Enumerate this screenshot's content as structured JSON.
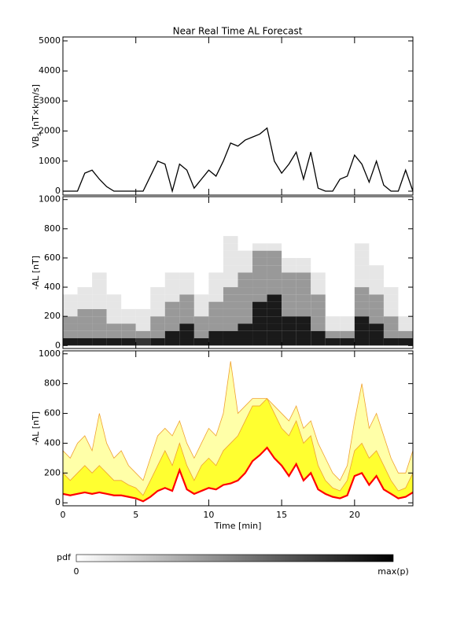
{
  "chart_data": [
    {
      "type": "line",
      "title": "Near Real Time AL Forecast",
      "ylabel": "VB",
      "ylabel_sub": "s",
      "ylabel_rest": " [nT×km/s]",
      "x": [
        0,
        0.5,
        1,
        1.5,
        2,
        2.5,
        3,
        3.5,
        4,
        4.5,
        5,
        5.5,
        6,
        6.5,
        7,
        7.5,
        8,
        8.5,
        9,
        9.5,
        10,
        10.5,
        11,
        11.5,
        12,
        12.5,
        13,
        13.5,
        14,
        14.5,
        15,
        15.5,
        16,
        16.5,
        17,
        17.5,
        18,
        18.5,
        19,
        19.5,
        20,
        20.5,
        21,
        21.5,
        22,
        22.5,
        23,
        23.5,
        24
      ],
      "series": [
        {
          "color": "#000000",
          "values": [
            0,
            0,
            0,
            600,
            700,
            400,
            150,
            0,
            0,
            0,
            0,
            0,
            500,
            1000,
            900,
            0,
            900,
            700,
            100,
            400,
            700,
            500,
            1000,
            1600,
            1500,
            1700,
            1800,
            1900,
            2100,
            1000,
            600,
            900,
            1300,
            400,
            1300,
            100,
            0,
            0,
            400,
            500,
            1200,
            900,
            300,
            1000,
            200,
            0,
            0,
            700,
            0
          ]
        }
      ],
      "xlim": [
        0,
        24
      ],
      "xticks": [
        0,
        5,
        10,
        15,
        20
      ],
      "ylim": [
        -130,
        5130
      ],
      "yticks": [
        0,
        1000,
        2000,
        3000,
        4000,
        5000
      ]
    },
    {
      "type": "heatmap",
      "ylabel": "-AL [nT]",
      "x_bins": [
        0,
        1,
        2,
        3,
        4,
        5,
        6,
        7,
        8,
        9,
        10,
        11,
        12,
        13,
        14,
        15,
        16,
        17,
        18,
        19,
        20,
        21,
        22,
        23,
        24
      ],
      "y_bins": [
        0,
        50,
        100,
        150,
        200,
        250,
        300,
        350,
        400,
        450,
        500,
        550,
        600,
        650,
        700,
        750
      ],
      "z": [
        [
          0.9,
          0.4,
          0.4,
          0.4,
          0.1,
          0.1,
          0.1,
          0,
          0,
          0,
          0,
          0,
          0,
          0,
          0
        ],
        [
          0.9,
          0.4,
          0.4,
          0.4,
          0.4,
          0.1,
          0.1,
          0.1,
          0,
          0,
          0,
          0,
          0,
          0,
          0
        ],
        [
          0.9,
          0.4,
          0.4,
          0.4,
          0.4,
          0.1,
          0.1,
          0.1,
          0.1,
          0.1,
          0,
          0,
          0,
          0,
          0
        ],
        [
          0.9,
          0.4,
          0.4,
          0.1,
          0.1,
          0.1,
          0.1,
          0,
          0,
          0,
          0,
          0,
          0,
          0,
          0
        ],
        [
          0.9,
          0.4,
          0.4,
          0.1,
          0.1,
          0,
          0,
          0,
          0,
          0,
          0,
          0,
          0,
          0,
          0
        ],
        [
          0.8,
          0.4,
          0.1,
          0.1,
          0.1,
          0,
          0,
          0,
          0,
          0,
          0,
          0,
          0,
          0,
          0
        ],
        [
          0.9,
          0.4,
          0.4,
          0.4,
          0.1,
          0.1,
          0.1,
          0.1,
          0,
          0,
          0,
          0,
          0,
          0,
          0
        ],
        [
          0.9,
          0.9,
          0.4,
          0.4,
          0.4,
          0.4,
          0.1,
          0.1,
          0.1,
          0.1,
          0,
          0,
          0,
          0,
          0
        ],
        [
          0.9,
          0.9,
          0.9,
          0.4,
          0.4,
          0.4,
          0.4,
          0.1,
          0.1,
          0.1,
          0,
          0,
          0,
          0,
          0
        ],
        [
          0.9,
          0.4,
          0.4,
          0.4,
          0.1,
          0.1,
          0.1,
          0,
          0,
          0,
          0,
          0,
          0,
          0,
          0
        ],
        [
          0.9,
          0.9,
          0.4,
          0.4,
          0.4,
          0.4,
          0.1,
          0.1,
          0.1,
          0.1,
          0,
          0,
          0,
          0,
          0
        ],
        [
          0.9,
          0.9,
          0.4,
          0.4,
          0.4,
          0.4,
          0.4,
          0.4,
          0.1,
          0.1,
          0.1,
          0.1,
          0.1,
          0.1,
          0.1
        ],
        [
          0.9,
          0.9,
          0.9,
          0.4,
          0.4,
          0.4,
          0.4,
          0.4,
          0.4,
          0.4,
          0.1,
          0.1,
          0.1,
          0,
          0
        ],
        [
          0.9,
          0.9,
          0.9,
          0.9,
          0.9,
          0.9,
          0.4,
          0.4,
          0.4,
          0.4,
          0.4,
          0.4,
          0.4,
          0.1,
          0
        ],
        [
          0.9,
          0.9,
          0.9,
          0.9,
          0.9,
          0.9,
          0.9,
          0.4,
          0.4,
          0.4,
          0.4,
          0.4,
          0.4,
          0.1,
          0
        ],
        [
          0.9,
          0.9,
          0.9,
          0.9,
          0.4,
          0.4,
          0.4,
          0.4,
          0.4,
          0.4,
          0.1,
          0.1,
          0,
          0,
          0
        ],
        [
          0.9,
          0.9,
          0.9,
          0.9,
          0.4,
          0.4,
          0.4,
          0.4,
          0.4,
          0.4,
          0.1,
          0.1,
          0,
          0,
          0
        ],
        [
          0.9,
          0.9,
          0.4,
          0.4,
          0.4,
          0.4,
          0.4,
          0.1,
          0.1,
          0.1,
          0,
          0,
          0,
          0,
          0
        ],
        [
          0.9,
          0.4,
          0.1,
          0.1,
          0,
          0,
          0,
          0,
          0,
          0,
          0,
          0,
          0,
          0,
          0
        ],
        [
          0.9,
          0.4,
          0.1,
          0.1,
          0,
          0,
          0,
          0,
          0,
          0,
          0,
          0,
          0,
          0,
          0
        ],
        [
          0.9,
          0.9,
          0.9,
          0.9,
          0.4,
          0.4,
          0.4,
          0.4,
          0.1,
          0.1,
          0.1,
          0.1,
          0.1,
          0.1,
          0
        ],
        [
          0.9,
          0.9,
          0.9,
          0.4,
          0.4,
          0.4,
          0.4,
          0.1,
          0.1,
          0.1,
          0.1,
          0,
          0,
          0,
          0
        ],
        [
          0.9,
          0.4,
          0.4,
          0.4,
          0.1,
          0.1,
          0.1,
          0.1,
          0,
          0,
          0,
          0,
          0,
          0,
          0
        ],
        [
          0.9,
          0.4,
          0.1,
          0.1,
          0,
          0,
          0,
          0,
          0,
          0,
          0,
          0,
          0,
          0,
          0
        ]
      ],
      "colorscale": [
        "#ffffff",
        "#000000"
      ],
      "colorbar": {
        "label": "pdf",
        "min_label": "0",
        "max_label": "max(p)"
      },
      "xlim": [
        0,
        24
      ],
      "xticks": [
        0,
        5,
        10,
        15,
        20
      ],
      "ylim": [
        -20,
        1020
      ],
      "yticks": [
        0,
        200,
        400,
        600,
        800,
        1000
      ]
    },
    {
      "type": "band",
      "ylabel": "-AL [nT]",
      "xlabel": "Time [min]",
      "x": [
        0,
        0.5,
        1,
        1.5,
        2,
        2.5,
        3,
        3.5,
        4,
        4.5,
        5,
        5.5,
        6,
        6.5,
        7,
        7.5,
        8,
        8.5,
        9,
        9.5,
        10,
        10.5,
        11,
        11.5,
        12,
        12.5,
        13,
        13.5,
        14,
        14.5,
        15,
        15.5,
        16,
        16.5,
        17,
        17.5,
        18,
        18.5,
        19,
        19.5,
        20,
        20.5,
        21,
        21.5,
        22,
        22.5,
        23,
        23.5,
        24
      ],
      "edge_color": "#f0a030",
      "series": [
        {
          "color": "#ffffa8",
          "values": [
            350,
            300,
            400,
            450,
            350,
            600,
            400,
            300,
            350,
            250,
            200,
            150,
            300,
            450,
            500,
            450,
            550,
            400,
            300,
            400,
            500,
            450,
            600,
            950,
            600,
            650,
            700,
            700,
            700,
            650,
            600,
            550,
            650,
            500,
            550,
            400,
            300,
            200,
            150,
            250,
            550,
            800,
            500,
            600,
            450,
            300,
            200,
            200,
            350
          ]
        },
        {
          "color": "#ffff30",
          "values": [
            200,
            150,
            200,
            250,
            200,
            250,
            200,
            150,
            150,
            120,
            100,
            50,
            150,
            250,
            350,
            250,
            400,
            250,
            150,
            250,
            300,
            250,
            350,
            400,
            450,
            550,
            650,
            650,
            700,
            600,
            500,
            450,
            550,
            400,
            450,
            250,
            150,
            100,
            80,
            150,
            350,
            400,
            300,
            350,
            250,
            150,
            80,
            100,
            200
          ]
        },
        {
          "color": "#ff0000",
          "values": [
            60,
            50,
            60,
            70,
            60,
            70,
            60,
            50,
            50,
            40,
            30,
            10,
            40,
            80,
            100,
            80,
            220,
            90,
            60,
            80,
            100,
            90,
            120,
            130,
            150,
            200,
            280,
            320,
            370,
            300,
            250,
            180,
            260,
            150,
            200,
            90,
            60,
            40,
            30,
            50,
            180,
            200,
            120,
            180,
            90,
            60,
            30,
            40,
            70
          ]
        }
      ],
      "xlim": [
        0,
        24
      ],
      "xticks": [
        0,
        5,
        10,
        15,
        20
      ],
      "ylim": [
        -20,
        1020
      ],
      "yticks": [
        0,
        200,
        400,
        600,
        800,
        1000
      ]
    }
  ]
}
